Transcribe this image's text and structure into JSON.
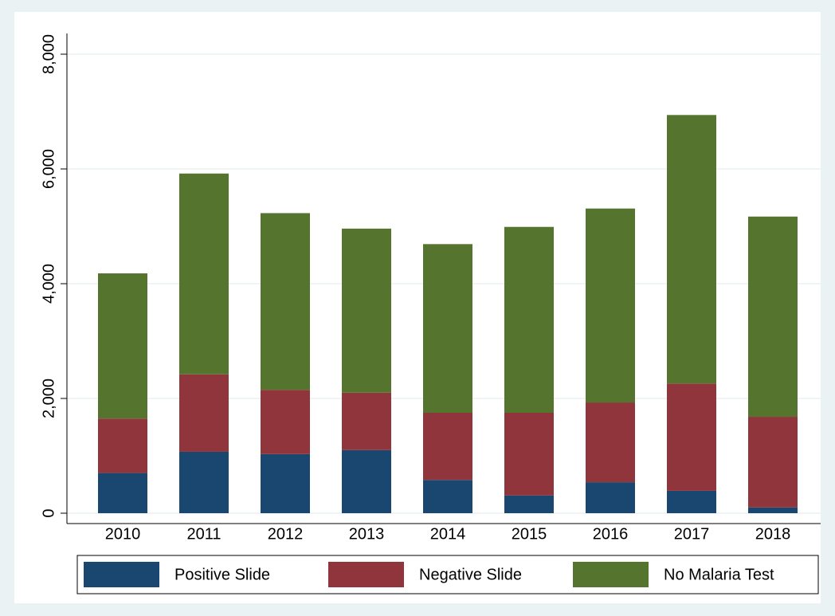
{
  "chart_data": {
    "type": "stacked_bar",
    "categories": [
      "2010",
      "2011",
      "2012",
      "2013",
      "2014",
      "2015",
      "2016",
      "2017",
      "2018"
    ],
    "series": [
      {
        "name": "Positive Slide",
        "color": "#1a476f",
        "values": [
          700,
          1070,
          1030,
          1100,
          580,
          310,
          540,
          390,
          100
        ]
      },
      {
        "name": "Negative Slide",
        "color": "#90353b",
        "values": [
          950,
          1350,
          1120,
          1000,
          1170,
          1440,
          1390,
          1870,
          1580
        ]
      },
      {
        "name": "No Malaria Test",
        "color": "#55752f",
        "values": [
          2530,
          3500,
          3080,
          2860,
          2940,
          3240,
          3380,
          4680,
          3490
        ]
      }
    ],
    "ylim": [
      0,
      8000
    ],
    "yticks": [
      {
        "value": 0,
        "label": "0"
      },
      {
        "value": 2000,
        "label": "2,000"
      },
      {
        "value": 4000,
        "label": "4,000"
      },
      {
        "value": 6000,
        "label": "6,000"
      },
      {
        "value": 8000,
        "label": "8,000"
      }
    ],
    "grid": true,
    "legend": "bottom"
  }
}
